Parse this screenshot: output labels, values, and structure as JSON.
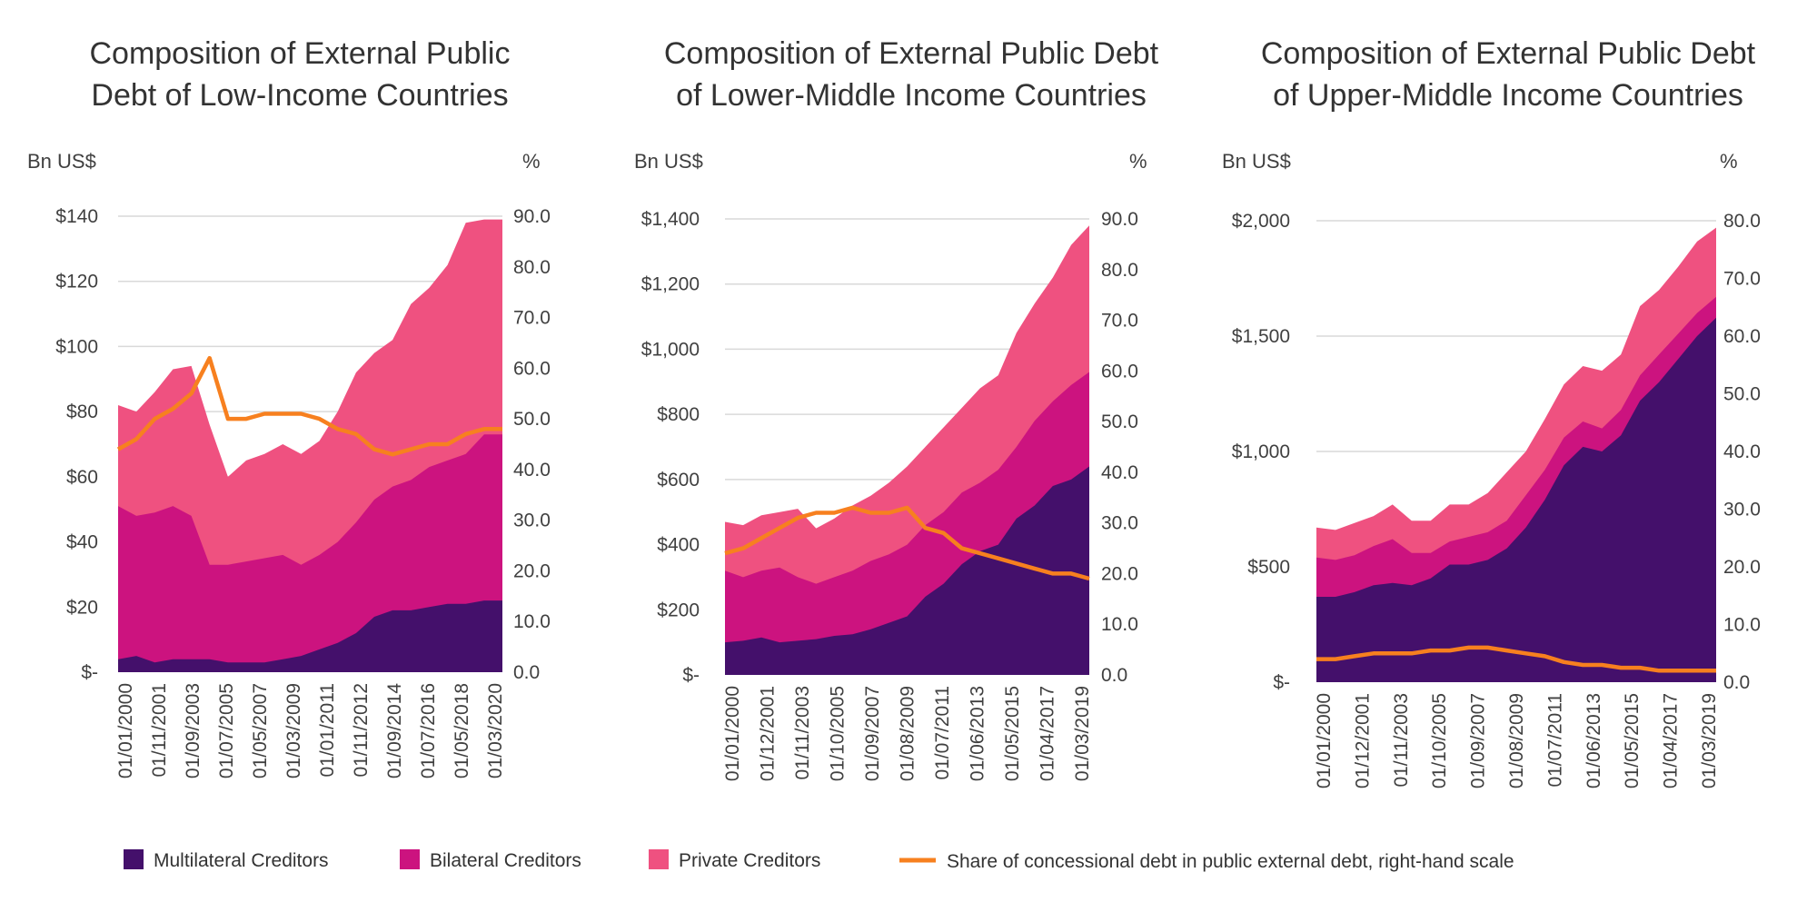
{
  "colors": {
    "multilateral": "#44106b",
    "bilateral": "#cc137f",
    "private": "#ef5180",
    "concessional": "#f7801f"
  },
  "legend": [
    {
      "key": "multilateral",
      "label": "Multilateral Creditors"
    },
    {
      "key": "bilateral",
      "label": "Bilateral Creditors"
    },
    {
      "key": "private",
      "label": "Private Creditors"
    },
    {
      "key": "concessional",
      "label": "Share of concessional debt in public external debt, right-hand scale"
    }
  ],
  "chart_data": [
    {
      "type": "area",
      "title_lines": [
        "Composition of External Public",
        "Debt of Low-Income Countries"
      ],
      "left_unit": "Bn US$",
      "right_unit": "%",
      "left_ticks": [
        {
          "v": 0,
          "label": "$-"
        },
        {
          "v": 20,
          "label": "$20"
        },
        {
          "v": 40,
          "label": "$40"
        },
        {
          "v": 60,
          "label": "$60"
        },
        {
          "v": 80,
          "label": "$80"
        },
        {
          "v": 100,
          "label": "$100"
        },
        {
          "v": 120,
          "label": "$120"
        },
        {
          "v": 140,
          "label": "$140"
        }
      ],
      "ylim": [
        0,
        140
      ],
      "right_ticks": [
        "0.0",
        "10.0",
        "20.0",
        "30.0",
        "40.0",
        "50.0",
        "60.0",
        "70.0",
        "80.0",
        "90.0"
      ],
      "y2lim": [
        0,
        90
      ],
      "x_labels": [
        "01/01/2000",
        "01/11/2001",
        "01/09/2003",
        "01/07/2005",
        "01/05/2007",
        "01/03/2009",
        "01/01/2011",
        "01/11/2012",
        "01/09/2014",
        "01/07/2016",
        "01/05/2018",
        "01/03/2020"
      ],
      "series": [
        {
          "key": "multilateral",
          "values": [
            4,
            5,
            3,
            4,
            4,
            4,
            3,
            3,
            3,
            4,
            5,
            7,
            9,
            12,
            17,
            19,
            19,
            20,
            21,
            21,
            22,
            22
          ]
        },
        {
          "key": "bilateral",
          "values": [
            51,
            48,
            49,
            51,
            48,
            33,
            33,
            34,
            35,
            36,
            33,
            36,
            40,
            46,
            53,
            57,
            59,
            63,
            65,
            67,
            73,
            73
          ]
        },
        {
          "key": "private",
          "values": [
            82,
            80,
            86,
            93,
            94,
            76,
            60,
            65,
            67,
            70,
            67,
            71,
            80,
            92,
            98,
            102,
            113,
            118,
            125,
            138,
            139,
            139
          ]
        },
        {
          "key": "concessional",
          "values": [
            44,
            46,
            50,
            52,
            55,
            62,
            50,
            50,
            51,
            51,
            51,
            50,
            48,
            47,
            44,
            43,
            44,
            45,
            45,
            47,
            48,
            48
          ]
        }
      ]
    },
    {
      "type": "area",
      "title_lines": [
        "Composition of External Public Debt",
        "of Lower-Middle Income Countries"
      ],
      "left_unit": "Bn US$",
      "right_unit": "%",
      "left_ticks": [
        {
          "v": 0,
          "label": "$-"
        },
        {
          "v": 200,
          "label": "$200"
        },
        {
          "v": 400,
          "label": "$400"
        },
        {
          "v": 600,
          "label": "$600"
        },
        {
          "v": 800,
          "label": "$800"
        },
        {
          "v": 1000,
          "label": "$1,000"
        },
        {
          "v": 1200,
          "label": "$1,200"
        },
        {
          "v": 1400,
          "label": "$1,400"
        }
      ],
      "ylim": [
        0,
        1400
      ],
      "right_ticks": [
        "0.0",
        "10.0",
        "20.0",
        "30.0",
        "40.0",
        "50.0",
        "60.0",
        "70.0",
        "80.0",
        "90.0"
      ],
      "y2lim": [
        0,
        90
      ],
      "x_labels": [
        "01/01/2000",
        "01/12/2001",
        "01/11/2003",
        "01/10/2005",
        "01/09/2007",
        "01/08/2009",
        "01/07/2011",
        "01/06/2013",
        "01/05/2015",
        "01/04/2017",
        "01/03/2019"
      ],
      "series": [
        {
          "key": "multilateral",
          "values": [
            100,
            105,
            115,
            100,
            105,
            110,
            120,
            125,
            140,
            160,
            180,
            240,
            280,
            340,
            380,
            400,
            480,
            520,
            580,
            600,
            640
          ]
        },
        {
          "key": "bilateral",
          "values": [
            320,
            300,
            320,
            330,
            300,
            280,
            300,
            320,
            350,
            370,
            400,
            460,
            500,
            560,
            590,
            630,
            700,
            780,
            840,
            890,
            930
          ]
        },
        {
          "key": "private",
          "values": [
            470,
            460,
            490,
            500,
            510,
            450,
            480,
            520,
            550,
            590,
            640,
            700,
            760,
            820,
            880,
            920,
            1050,
            1140,
            1220,
            1320,
            1380
          ]
        },
        {
          "key": "concessional",
          "values": [
            24,
            25,
            27,
            29,
            31,
            32,
            32,
            33,
            32,
            32,
            33,
            29,
            28,
            25,
            24,
            23,
            22,
            21,
            20,
            20,
            19
          ]
        }
      ]
    },
    {
      "type": "area",
      "title_lines": [
        "Composition of External Public Debt",
        "of Upper-Middle Income Countries"
      ],
      "left_unit": "Bn US$",
      "right_unit": "%",
      "left_ticks": [
        {
          "v": 0,
          "label": "$-"
        },
        {
          "v": 500,
          "label": "$500"
        },
        {
          "v": 1000,
          "label": "$1,000"
        },
        {
          "v": 1500,
          "label": "$1,500"
        },
        {
          "v": 2000,
          "label": "$2,000"
        }
      ],
      "ylim": [
        0,
        2000
      ],
      "right_ticks": [
        "0.0",
        "10.0",
        "20.0",
        "30.0",
        "40.0",
        "50.0",
        "60.0",
        "70.0",
        "80.0"
      ],
      "y2lim": [
        0,
        80
      ],
      "x_labels": [
        "01/01/2000",
        "01/12/2001",
        "01/11/2003",
        "01/10/2005",
        "01/09/2007",
        "01/08/2009",
        "01/07/2011",
        "01/06/2013",
        "01/05/2015",
        "01/04/2017",
        "01/03/2019"
      ],
      "series": [
        {
          "key": "multilateral",
          "values": [
            370,
            370,
            390,
            420,
            430,
            420,
            450,
            510,
            510,
            530,
            580,
            670,
            790,
            940,
            1020,
            1000,
            1070,
            1220,
            1300,
            1400,
            1500,
            1580
          ]
        },
        {
          "key": "bilateral",
          "values": [
            540,
            530,
            550,
            590,
            620,
            560,
            560,
            610,
            630,
            650,
            700,
            810,
            920,
            1060,
            1130,
            1100,
            1180,
            1330,
            1420,
            1510,
            1600,
            1670
          ]
        },
        {
          "key": "private",
          "values": [
            670,
            660,
            690,
            720,
            770,
            700,
            700,
            770,
            770,
            820,
            910,
            1000,
            1140,
            1290,
            1370,
            1350,
            1420,
            1630,
            1700,
            1800,
            1910,
            1970
          ]
        },
        {
          "key": "concessional",
          "values": [
            4,
            4,
            4.5,
            5,
            5,
            5,
            5.5,
            5.5,
            6,
            6,
            5.5,
            5,
            4.5,
            3.5,
            3,
            3,
            2.5,
            2.5,
            2,
            2,
            2,
            2
          ]
        }
      ]
    }
  ]
}
